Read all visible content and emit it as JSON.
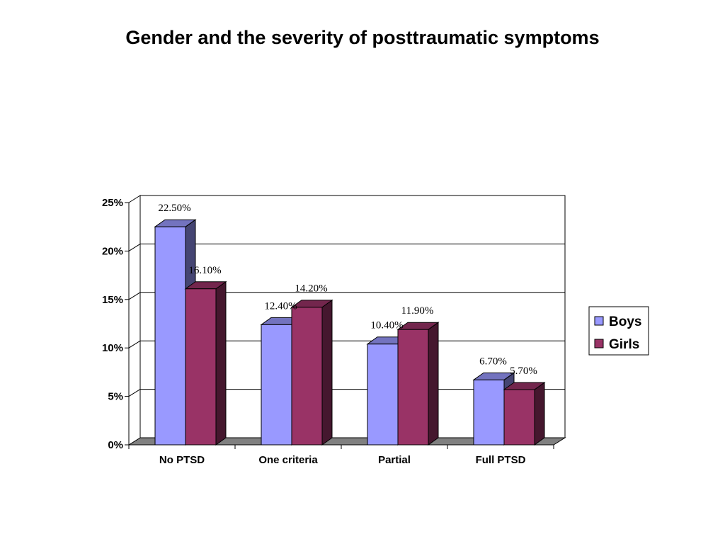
{
  "chart_data": {
    "type": "bar",
    "title": "Gender and the severity of posttraumatic symptoms",
    "categories": [
      "No PTSD",
      "One criteria",
      "Partial",
      "Full PTSD"
    ],
    "series": [
      {
        "name": "Boys",
        "values": [
          22.5,
          12.4,
          10.4,
          6.7
        ],
        "labels": [
          "22.50%",
          "12.40%",
          "10.40%",
          "6.70%"
        ],
        "color": "#9999ff"
      },
      {
        "name": "Girls",
        "values": [
          16.1,
          14.2,
          11.9,
          5.7
        ],
        "labels": [
          "16.10%",
          "14.20%",
          "11.90%",
          "5.70%"
        ],
        "color": "#993366"
      }
    ],
    "yticks": [
      "0%",
      "5%",
      "10%",
      "15%",
      "20%",
      "25%"
    ],
    "ylim": [
      0,
      25
    ],
    "grid": true,
    "legend_position": "right",
    "style": "3d-clustered-column"
  }
}
